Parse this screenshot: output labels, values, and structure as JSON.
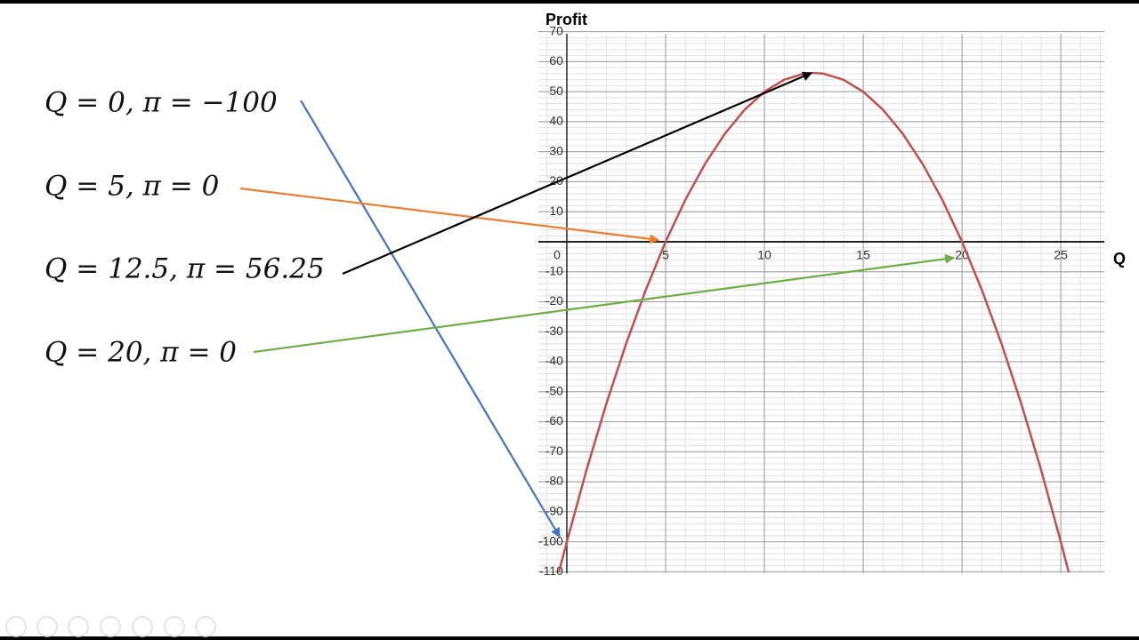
{
  "chart_data": {
    "type": "line",
    "y_axis_label": "Profit",
    "x_axis_label": "Q",
    "x": [
      -0.4,
      0,
      1,
      2,
      3,
      4,
      5,
      6,
      7,
      8,
      9,
      10,
      11,
      12,
      12.5,
      13,
      14,
      15,
      16,
      17,
      18,
      19,
      20,
      21,
      22,
      23,
      24,
      25,
      25.4
    ],
    "series": [
      {
        "color": "#c0504d",
        "values": [
          -110.16,
          -100,
          -76,
          -54,
          -34,
          -16,
          0,
          14,
          26,
          36,
          44,
          50,
          54,
          56,
          56.25,
          56,
          54,
          50,
          44,
          36,
          26,
          14,
          0,
          -16,
          -34,
          -54,
          -76,
          -100,
          -110.16
        ]
      }
    ],
    "xlim": [
      -1.44,
      27.2
    ],
    "ylim": [
      -110.5,
      69.3
    ],
    "xticks": [
      0,
      5,
      10,
      15,
      20,
      25
    ],
    "yticks": [
      -110,
      -100,
      -90,
      -80,
      -70,
      -60,
      -50,
      -40,
      -30,
      -20,
      -10,
      10,
      20,
      30,
      40,
      50,
      60,
      70
    ],
    "grid": true,
    "annotations": [
      {
        "text": "Q = 0, π = −100",
        "color": "#4472c4"
      },
      {
        "text": "Q = 5, π = 0",
        "color": "#ed7d31"
      },
      {
        "text": "Q = 12.5, π = 56.25",
        "color": "#000000"
      },
      {
        "text": "Q = 20, π = 0",
        "color": "#70ad47"
      }
    ]
  }
}
